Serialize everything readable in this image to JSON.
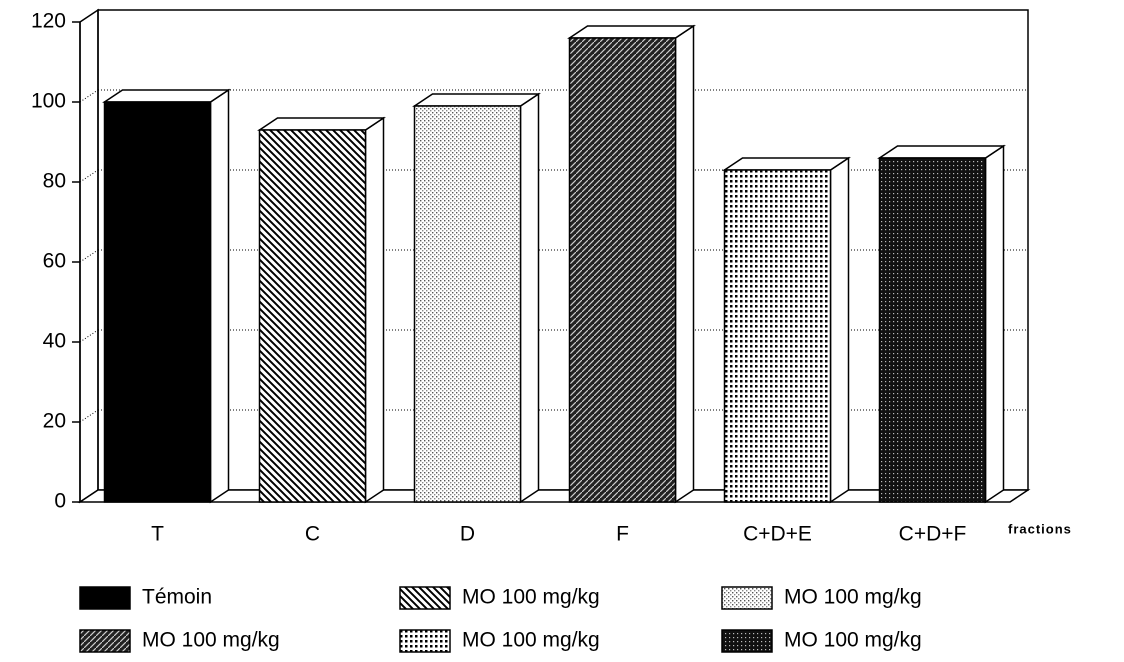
{
  "chart_data": {
    "type": "bar3d",
    "categories": [
      "T",
      "C",
      "D",
      "F",
      "C+D+E",
      "C+D+F"
    ],
    "values": [
      100,
      93,
      99,
      116,
      83,
      86
    ],
    "patterns": [
      "solid",
      "backslash",
      "lightdots",
      "slash",
      "dots",
      "dense"
    ],
    "legend": [
      "Témoin",
      "MO 100 mg/kg",
      "MO 100 mg/kg",
      "MO 100 mg/kg",
      "MO 100 mg/kg",
      "MO 100 mg/kg"
    ],
    "x_label": "fractions",
    "ylim": [
      0,
      120
    ],
    "yticks": [
      0,
      20,
      40,
      60,
      80,
      100,
      120
    ],
    "grid": true
  }
}
